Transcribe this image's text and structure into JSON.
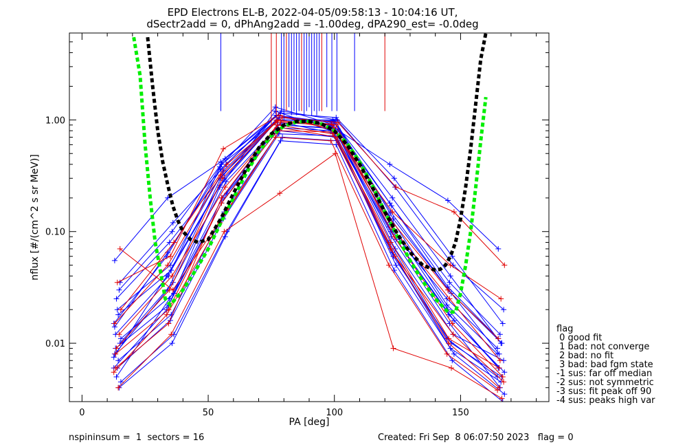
{
  "title_line1": "EPD Electrons EL-B, 2022-04-05/09:58:13 - 10:04:16 UT,",
  "title_line2": "dSectr2add = 0, dPhAng2add = -1.00deg, dPA290_est=  -0.0deg",
  "footer": {
    "left": "nspininsum =  1  sectors = 16",
    "right": "Created: Fri Sep  8 06:07:50 2023   flag = 0"
  },
  "legend": {
    "title": "flag",
    "items": [
      " 0 good fit",
      " 1 bad: not converge",
      " 2 bad: no fit",
      " 3 bad: bad fgm state",
      "-1 sus: far off median",
      "-2 sus: not symmetric",
      "-3 sus: fit peak off 90",
      "-4 sus: peaks high var"
    ]
  },
  "colors": {
    "blue": "#0000ff",
    "red": "#e00000",
    "green_fit": "#00ee00",
    "black_fit": "#000000"
  },
  "chart_data": {
    "type": "line",
    "xlabel": "PA [deg]",
    "ylabel": "nflux [#/(cm^2 s sr MeV)]",
    "xlim": [
      -5,
      185
    ],
    "ylim": [
      0.003,
      6.0
    ],
    "yscale": "log",
    "xticks": [
      0,
      50,
      100,
      150
    ],
    "xtick_labels": [
      "0",
      "50",
      "100",
      "150"
    ],
    "yticks": [
      0.01,
      0.1,
      1.0
    ],
    "ytick_labels": [
      "0.01",
      "0.10",
      "1.00"
    ],
    "sector_pa": [
      14,
      35,
      56,
      78,
      100,
      123,
      146,
      166
    ],
    "series": [
      {
        "color": "blue",
        "values": [
          0.006,
          0.02,
          0.25,
          1.2,
          0.8,
          0.08,
          0.011,
          0.005
        ]
      },
      {
        "color": "blue",
        "values": [
          0.008,
          0.03,
          0.3,
          1.1,
          0.9,
          0.12,
          0.02,
          0.006
        ]
      },
      {
        "color": "blue",
        "values": [
          0.012,
          0.04,
          0.4,
          1.0,
          1.0,
          0.15,
          0.03,
          0.008
        ]
      },
      {
        "color": "blue",
        "values": [
          0.005,
          0.025,
          0.2,
          0.9,
          0.85,
          0.09,
          0.015,
          0.004
        ]
      },
      {
        "color": "blue",
        "values": [
          0.02,
          0.05,
          0.35,
          1.05,
          0.95,
          0.2,
          0.04,
          0.01
        ]
      },
      {
        "color": "blue",
        "values": [
          0.007,
          0.018,
          0.15,
          0.8,
          0.7,
          0.06,
          0.01,
          0.005
        ]
      },
      {
        "color": "blue",
        "values": [
          0.03,
          0.1,
          0.45,
          1.15,
          1.05,
          0.3,
          0.06,
          0.015
        ]
      },
      {
        "color": "blue",
        "values": [
          0.01,
          0.035,
          0.28,
          0.95,
          0.75,
          0.07,
          0.012,
          0.007
        ]
      },
      {
        "color": "blue",
        "values": [
          0.0045,
          0.012,
          0.1,
          0.7,
          0.65,
          0.05,
          0.008,
          0.0035
        ]
      },
      {
        "color": "blue",
        "values": [
          0.015,
          0.06,
          0.38,
          1.3,
          0.92,
          0.11,
          0.025,
          0.009
        ]
      },
      {
        "color": "blue",
        "values": [
          0.055,
          0.2,
          0.42,
          1.1,
          0.88,
          0.4,
          0.19,
          0.07
        ]
      },
      {
        "color": "blue",
        "values": [
          0.009,
          0.022,
          0.18,
          0.85,
          0.8,
          0.1,
          0.018,
          0.006
        ]
      },
      {
        "color": "blue",
        "values": [
          0.025,
          0.08,
          0.32,
          1.0,
          0.97,
          0.17,
          0.035,
          0.012
        ]
      },
      {
        "color": "blue",
        "values": [
          0.006,
          0.016,
          0.13,
          0.75,
          0.72,
          0.065,
          0.009,
          0.0045
        ]
      },
      {
        "color": "blue",
        "values": [
          0.018,
          0.045,
          0.3,
          1.05,
          0.98,
          0.13,
          0.028,
          0.01
        ]
      },
      {
        "color": "blue",
        "values": [
          0.004,
          0.01,
          0.09,
          0.65,
          0.6,
          0.045,
          0.007,
          0.003
        ]
      },
      {
        "color": "blue",
        "values": [
          0.035,
          0.12,
          0.4,
          1.2,
          1.0,
          0.25,
          0.05,
          0.02
        ]
      },
      {
        "color": "blue",
        "values": [
          0.011,
          0.028,
          0.22,
          0.9,
          0.83,
          0.085,
          0.016,
          0.0055
        ]
      },
      {
        "color": "blue",
        "values": [
          0.0075,
          0.04,
          0.26,
          0.95,
          0.9,
          0.14,
          0.022,
          0.008
        ]
      },
      {
        "color": "blue",
        "values": [
          0.014,
          0.065,
          0.36,
          1.1,
          0.95,
          0.18,
          0.032,
          0.011
        ]
      },
      {
        "color": "red",
        "values": [
          0.006,
          0.015,
          0.2,
          0.9,
          0.75,
          0.07,
          0.01,
          0.004
        ]
      },
      {
        "color": "red",
        "values": [
          0.009,
          0.03,
          0.3,
          1.0,
          0.85,
          0.11,
          0.025,
          0.007
        ]
      },
      {
        "color": "red",
        "values": [
          0.035,
          0.06,
          0.55,
          1.1,
          0.8,
          0.15,
          0.05,
          0.025
        ]
      },
      {
        "color": "red",
        "values": [
          0.004,
          0.012,
          0.1,
          0.22,
          0.5,
          0.009,
          0.006,
          0.0032
        ]
      },
      {
        "color": "red",
        "values": [
          0.012,
          0.04,
          0.25,
          0.95,
          0.9,
          0.09,
          0.015,
          0.005
        ]
      },
      {
        "color": "red",
        "values": [
          0.07,
          0.03,
          0.15,
          0.85,
          0.7,
          0.06,
          0.012,
          0.0045
        ]
      },
      {
        "color": "red",
        "values": [
          0.02,
          0.08,
          0.4,
          1.05,
          0.95,
          0.25,
          0.15,
          0.05
        ]
      },
      {
        "color": "red",
        "values": [
          0.0055,
          0.018,
          0.12,
          0.7,
          0.65,
          0.05,
          0.008,
          0.0038
        ]
      },
      {
        "color": "red",
        "values": [
          0.015,
          0.05,
          0.32,
          0.98,
          0.92,
          0.13,
          0.03,
          0.011
        ]
      },
      {
        "color": "red",
        "values": [
          0.008,
          0.02,
          0.18,
          0.8,
          0.78,
          0.08,
          0.011,
          0.006
        ]
      }
    ],
    "fit_curves": [
      {
        "name": "",
        "color": "green_fit",
        "x": [
          20.5,
          23,
          25,
          27,
          29,
          31,
          33,
          35,
          40,
          45,
          50,
          55,
          60,
          65,
          70,
          75,
          80,
          85,
          90,
          95,
          100,
          105,
          110,
          115,
          120,
          125,
          130,
          135,
          140,
          145,
          148,
          150,
          152,
          154,
          156,
          158,
          160
        ],
        "y": [
          5.5,
          2.5,
          0.6,
          0.2,
          0.08,
          0.045,
          0.025,
          0.022,
          0.03,
          0.045,
          0.07,
          0.12,
          0.2,
          0.33,
          0.52,
          0.72,
          0.88,
          0.96,
          0.97,
          0.92,
          0.8,
          0.62,
          0.42,
          0.26,
          0.15,
          0.09,
          0.055,
          0.036,
          0.025,
          0.019,
          0.019,
          0.028,
          0.05,
          0.1,
          0.25,
          0.65,
          1.6
        ]
      },
      {
        "name": "",
        "color": "black_fit",
        "x": [
          26,
          28,
          30,
          32,
          34,
          36,
          38,
          40,
          43,
          46,
          50,
          55,
          60,
          65,
          70,
          75,
          80,
          85,
          90,
          95,
          100,
          105,
          110,
          115,
          120,
          125,
          130,
          135,
          140,
          142,
          144,
          146,
          148,
          150,
          152,
          154,
          156,
          158,
          160
        ],
        "y": [
          5.5,
          2.0,
          0.8,
          0.42,
          0.26,
          0.17,
          0.125,
          0.1,
          0.085,
          0.08,
          0.085,
          0.13,
          0.22,
          0.36,
          0.56,
          0.75,
          0.9,
          0.97,
          0.97,
          0.92,
          0.8,
          0.6,
          0.4,
          0.25,
          0.15,
          0.095,
          0.065,
          0.05,
          0.045,
          0.046,
          0.05,
          0.06,
          0.08,
          0.13,
          0.25,
          0.55,
          1.4,
          3.5,
          6.0
        ]
      }
    ],
    "spikes": [
      {
        "x": 55,
        "color": "blue",
        "bottom": 1.2
      },
      {
        "x": 75,
        "color": "red",
        "bottom": 0.9
      },
      {
        "x": 77,
        "color": "red",
        "bottom": 1.1
      },
      {
        "x": 79,
        "color": "blue",
        "bottom": 1.2
      },
      {
        "x": 80,
        "color": "blue",
        "bottom": 1.0
      },
      {
        "x": 81,
        "color": "red",
        "bottom": 1.2
      },
      {
        "x": 82,
        "color": "blue",
        "bottom": 1.3
      },
      {
        "x": 83,
        "color": "blue",
        "bottom": 1.1
      },
      {
        "x": 84,
        "color": "blue",
        "bottom": 1.2
      },
      {
        "x": 85,
        "color": "blue",
        "bottom": 1.1
      },
      {
        "x": 86,
        "color": "blue",
        "bottom": 1.2
      },
      {
        "x": 87,
        "color": "red",
        "bottom": 1.2
      },
      {
        "x": 88,
        "color": "blue",
        "bottom": 1.1
      },
      {
        "x": 89,
        "color": "blue",
        "bottom": 1.2
      },
      {
        "x": 90,
        "color": "blue",
        "bottom": 1.3
      },
      {
        "x": 91,
        "color": "blue",
        "bottom": 1.1
      },
      {
        "x": 92,
        "color": "blue",
        "bottom": 1.2
      },
      {
        "x": 93,
        "color": "blue",
        "bottom": 1.1
      },
      {
        "x": 94,
        "color": "blue",
        "bottom": 1.2
      },
      {
        "x": 95,
        "color": "red",
        "bottom": 1.2
      },
      {
        "x": 97,
        "color": "blue",
        "bottom": 1.3
      },
      {
        "x": 99,
        "color": "blue",
        "bottom": 1.2
      },
      {
        "x": 101,
        "color": "blue",
        "bottom": 1.2
      },
      {
        "x": 108,
        "color": "blue",
        "bottom": 1.2
      },
      {
        "x": 120,
        "color": "red",
        "bottom": 1.2
      }
    ]
  }
}
